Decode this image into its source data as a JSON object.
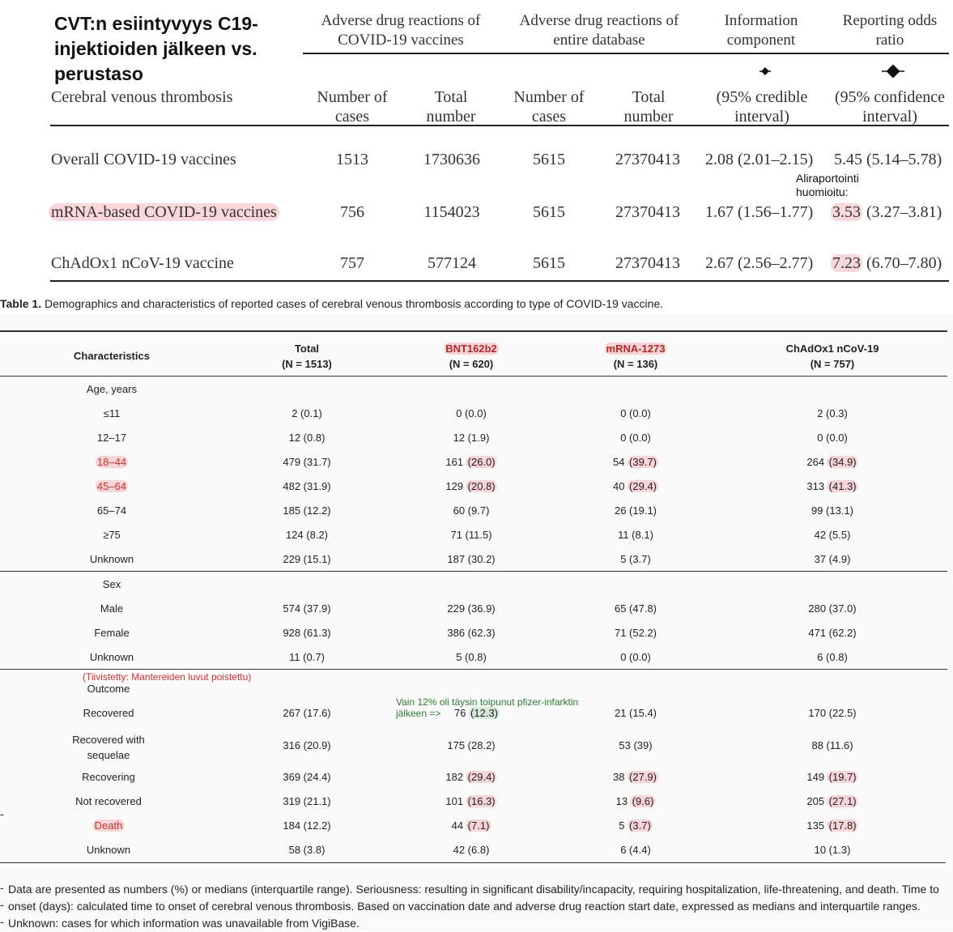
{
  "title": "CVT:n esiintyvyys C19-injektioiden jälkeen vs. perustaso",
  "top_table": {
    "group_headers": [
      "Adverse drug reactions of COVID-19 vaccines",
      "Adverse drug reactions of entire database",
      "Information component",
      "Reporting odds ratio"
    ],
    "row_label_header": "Cerebral venous thrombosis",
    "sub_headers": [
      "Number of cases",
      "Total number",
      "Number of cases",
      "Total number",
      "(95% credible interval)",
      "(95% confidence interval)"
    ],
    "rows": [
      {
        "label": "Overall COVID-19 vaccines",
        "cases": "1513",
        "total": "1730636",
        "db_cases": "5615",
        "db_total": "27370413",
        "ic": "2.08 (2.01–2.15)",
        "ror_main": "5.45",
        "ror_ci": "(5.14–5.78)"
      },
      {
        "label": "mRNA-based COVID-19 vaccines",
        "cases": "756",
        "total": "1154023",
        "db_cases": "5615",
        "db_total": "27370413",
        "ic": "1.67 (1.56–1.77)",
        "ror_main": "3.53",
        "ror_ci": "(3.27–3.81)"
      },
      {
        "label": "ChAdOx1 nCoV-19 vaccine",
        "cases": "757",
        "total": "577124",
        "db_cases": "5615",
        "db_total": "27370413",
        "ic": "2.67 (2.56–2.77)",
        "ror_main": "7.23",
        "ror_ci": "(6.70–7.80)"
      }
    ],
    "annotation": "Aliraportointi huomioitu:"
  },
  "caption": {
    "label": "Table 1.",
    "text": " Demographics and characteristics of reported cases of cerebral venous thrombosis according to type of COVID-19 vaccine."
  },
  "table1": {
    "characteristics_header": "Characteristics",
    "columns": [
      {
        "name": "Total",
        "n": "(N = 1513)"
      },
      {
        "name": "BNT162b2",
        "n": "(N = 620)"
      },
      {
        "name": "mRNA-1273",
        "n": "(N = 136)"
      },
      {
        "name": "ChAdOx1 nCoV-19",
        "n": "(N = 757)"
      }
    ],
    "age_section": "Age, years",
    "age_rows": [
      {
        "label": "≤11",
        "v": [
          "2 (0.1)",
          "0 (0.0)",
          "0 (0.0)",
          "2 (0.3)"
        ]
      },
      {
        "label": "12–17",
        "v": [
          "12 (0.8)",
          "12 (1.9)",
          "0 (0.0)",
          "0 (0.0)"
        ]
      },
      {
        "label": "18–44",
        "v": [
          "479 (31.7)",
          "161 (26.0)",
          "54 (39.7)",
          "264 (34.9)"
        ]
      },
      {
        "label": "45–64",
        "v": [
          "482 (31.9)",
          "129 (20.8)",
          "40 (29.4)",
          "313 (41.3)"
        ]
      },
      {
        "label": "65–74",
        "v": [
          "185 (12.2)",
          "60 (9.7)",
          "26 (19.1)",
          "99 (13.1)"
        ]
      },
      {
        "label": "≥75",
        "v": [
          "124 (8.2)",
          "71 (11.5)",
          "11 (8.1)",
          "42 (5.5)"
        ]
      },
      {
        "label": "Unknown",
        "v": [
          "229 (15.1)",
          "187 (30.2)",
          "5 (3.7)",
          "37 (4.9)"
        ]
      }
    ],
    "sex_section": "Sex",
    "sex_rows": [
      {
        "label": "Male",
        "v": [
          "574 (37.9)",
          "229 (36.9)",
          "65 (47.8)",
          "280 (37.0)"
        ]
      },
      {
        "label": "Female",
        "v": [
          "928 (61.3)",
          "386 (62.3)",
          "71 (52.2)",
          "471 (62.2)"
        ]
      },
      {
        "label": "Unknown",
        "v": [
          "11 (0.7)",
          "5 (0.8)",
          "0 (0.0)",
          "6 (0.8)"
        ]
      }
    ],
    "red_note": "(Tiivistetty: Mantereiden luvut poistettu)",
    "outcome_section": "Outcome",
    "green_note_line1": "Vain 12% oli täysin toipunut pfizer-infarktin",
    "green_note_line2": "jälkeen =>",
    "outcome_rows": [
      {
        "label": "Recovered",
        "v": [
          "267 (17.6)",
          "76 (12.3)",
          "21 (15.4)",
          "170 (22.5)"
        ]
      },
      {
        "label": "Recovered with sequelae",
        "v": [
          "316 (20.9)",
          "175 (28.2)",
          "53 (39)",
          "88 (11.6)"
        ]
      },
      {
        "label": "Recovering",
        "v": [
          "369 (24.4)",
          "182 (29.4)",
          "38 (27.9)",
          "149 (19.7)"
        ]
      },
      {
        "label": "Not recovered",
        "v": [
          "319 (21.1)",
          "101 (16.3)",
          "13 (9.6)",
          "205 (27.1)"
        ]
      },
      {
        "label": "Death",
        "v": [
          "184 (12.2)",
          "44 (7.1)",
          "5 (3.7)",
          "135 (17.8)"
        ]
      },
      {
        "label": "Unknown",
        "v": [
          "58 (3.8)",
          "42 (6.8)",
          "6 (4.4)",
          "10 (1.3)"
        ]
      }
    ],
    "footnote": "Data are presented as numbers (%) or medians (interquartile range). Seriousness: resulting in significant disability/incapacity, requiring hospitalization, life-threatening, and death. Time to onset (days): calculated time to onset of cerebral venous thrombosis. Based on vaccination date and adverse drug reaction start date, expressed as medians and interquartile ranges. Unknown: cases for which information was unavailable from VigiBase."
  }
}
